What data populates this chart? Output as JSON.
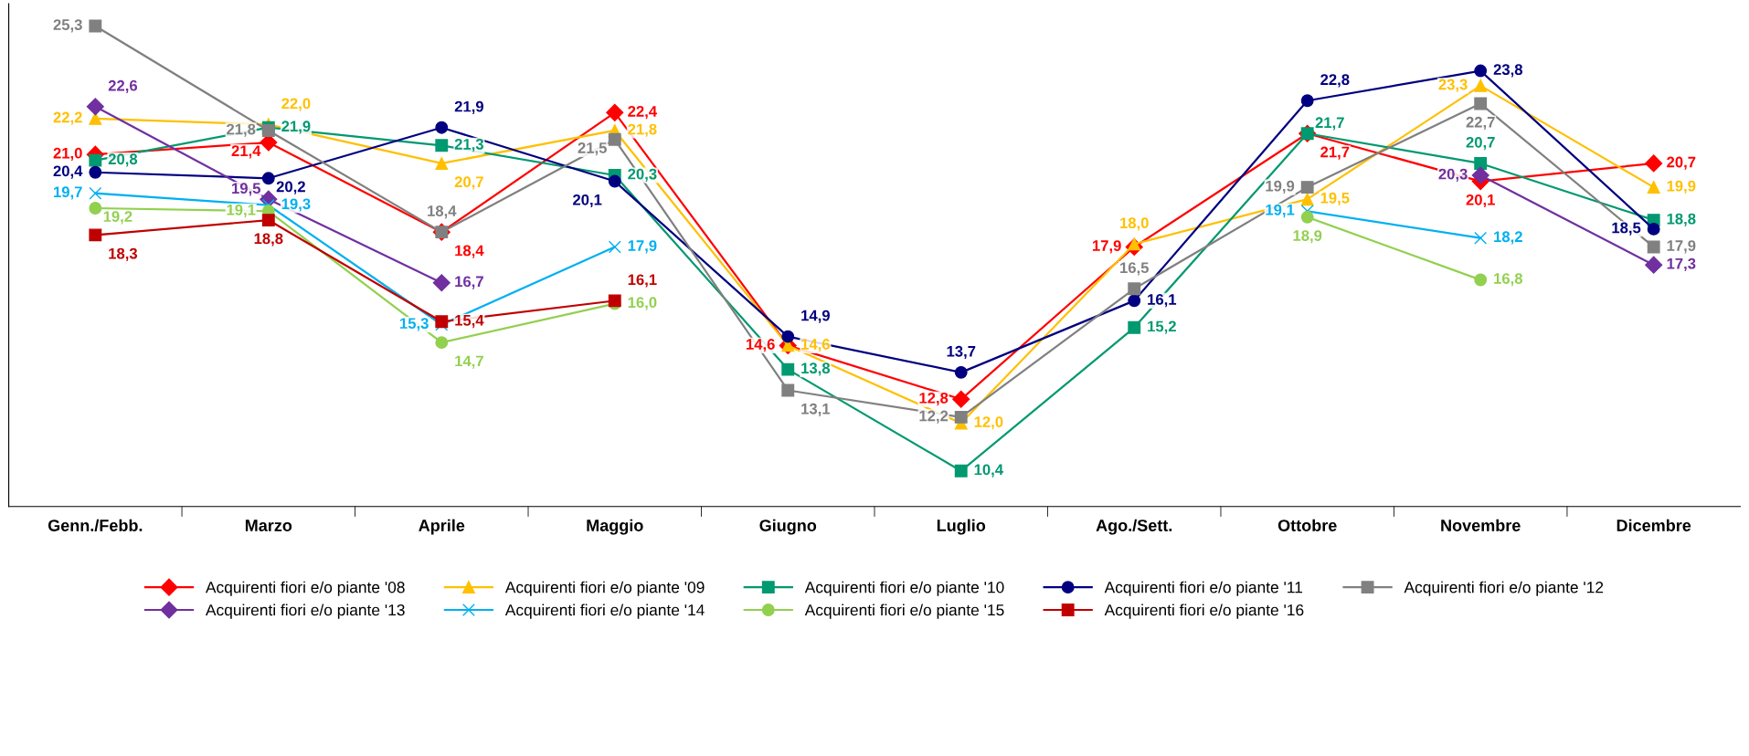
{
  "chart_data": {
    "type": "line",
    "categories": [
      "Genn./Febb.",
      "Marzo",
      "Aprile",
      "Maggio",
      "Giugno",
      "Luglio",
      "Ago./Sett.",
      "Ottobre",
      "Novembre",
      "Dicembre"
    ],
    "series": [
      {
        "name": "Acquirenti fiori e/o piante '08",
        "color": "#ff0000",
        "marker": "diamond",
        "values": [
          21.0,
          21.4,
          18.4,
          22.4,
          14.6,
          12.8,
          17.9,
          21.7,
          20.1,
          20.7
        ],
        "value_labels": [
          "21,0",
          "21,4",
          "18,4",
          "22,4",
          "14,6",
          "12,8",
          "17,9",
          "21,7",
          "20,1",
          "20,7"
        ]
      },
      {
        "name": "Acquirenti fiori e/o piante '09",
        "color": "#ffc000",
        "marker": "triangle",
        "values": [
          22.2,
          22.0,
          20.7,
          21.8,
          14.6,
          12.0,
          18.0,
          19.5,
          23.3,
          19.9
        ],
        "value_labels": [
          "22,2",
          "22,0",
          "20,7",
          "21,8",
          "14,6",
          "12,0",
          "18,0",
          "19,5",
          "23,3",
          "19,9"
        ]
      },
      {
        "name": "Acquirenti fiori e/o piante '10",
        "color": "#009970",
        "marker": "square",
        "values": [
          20.8,
          21.9,
          21.3,
          20.3,
          13.8,
          10.4,
          15.2,
          21.7,
          20.7,
          18.8
        ],
        "value_labels": [
          "20,8",
          "21,9",
          "21,3",
          "20,3",
          "13,8",
          "10,4",
          "15,2",
          "21,7",
          "20,7",
          "18,8"
        ]
      },
      {
        "name": "Acquirenti fiori e/o piante '11",
        "color": "#000080",
        "marker": "circle",
        "values": [
          20.4,
          20.2,
          21.9,
          20.1,
          14.9,
          13.7,
          16.1,
          22.8,
          23.8,
          18.5
        ],
        "value_labels": [
          "20,4",
          "20,2",
          "21,9",
          "20,1",
          "14,9",
          "13,7",
          "16,1",
          "22,8",
          "23,8",
          "18,5"
        ]
      },
      {
        "name": "Acquirenti fiori e/o piante '12",
        "color": "#808080",
        "marker": "square",
        "values": [
          25.3,
          21.8,
          18.4,
          21.5,
          13.1,
          12.2,
          16.5,
          19.9,
          22.7,
          17.9
        ],
        "value_labels": [
          "25,3",
          "21,8",
          "18,4",
          "21,5",
          "13,1",
          "12,2",
          "16,5",
          "19,9",
          "22,7",
          "17,9"
        ]
      },
      {
        "name": "Acquirenti fiori e/o piante '13",
        "color": "#7030a0",
        "marker": "diamond",
        "values": [
          22.6,
          19.5,
          16.7,
          null,
          null,
          null,
          null,
          null,
          20.3,
          17.3
        ],
        "value_labels": [
          "22,6",
          "19,5",
          "16,7",
          null,
          null,
          null,
          null,
          null,
          "20,3",
          "17,3"
        ]
      },
      {
        "name": "Acquirenti fiori e/o piante '14",
        "color": "#00b0f0",
        "marker": "cross",
        "values": [
          19.7,
          19.3,
          15.3,
          17.9,
          null,
          null,
          null,
          19.1,
          18.2,
          null
        ],
        "value_labels": [
          "19,7",
          "19,3",
          "15,3",
          "17,9",
          null,
          null,
          null,
          "19,1",
          "18,2",
          null
        ]
      },
      {
        "name": "Acquirenti fiori e/o piante '15",
        "color": "#92d050",
        "marker": "circle",
        "values": [
          19.2,
          19.1,
          14.7,
          16.0,
          null,
          null,
          null,
          18.9,
          16.8,
          null
        ],
        "value_labels": [
          "19,2",
          "19,1",
          "14,7",
          "16,0",
          null,
          null,
          null,
          "18,9",
          "16,8",
          null
        ]
      },
      {
        "name": "Acquirenti fiori e/o piante '16",
        "color": "#c00000",
        "marker": "square",
        "values": [
          18.3,
          18.8,
          15.4,
          16.1,
          null,
          null,
          null,
          null,
          null,
          null
        ],
        "value_labels": [
          "18,3",
          "18,8",
          "15,4",
          "16,1",
          null,
          null,
          null,
          null,
          null,
          null
        ]
      }
    ],
    "tick_labels": "x",
    "grid": false,
    "legend": "bottom"
  }
}
